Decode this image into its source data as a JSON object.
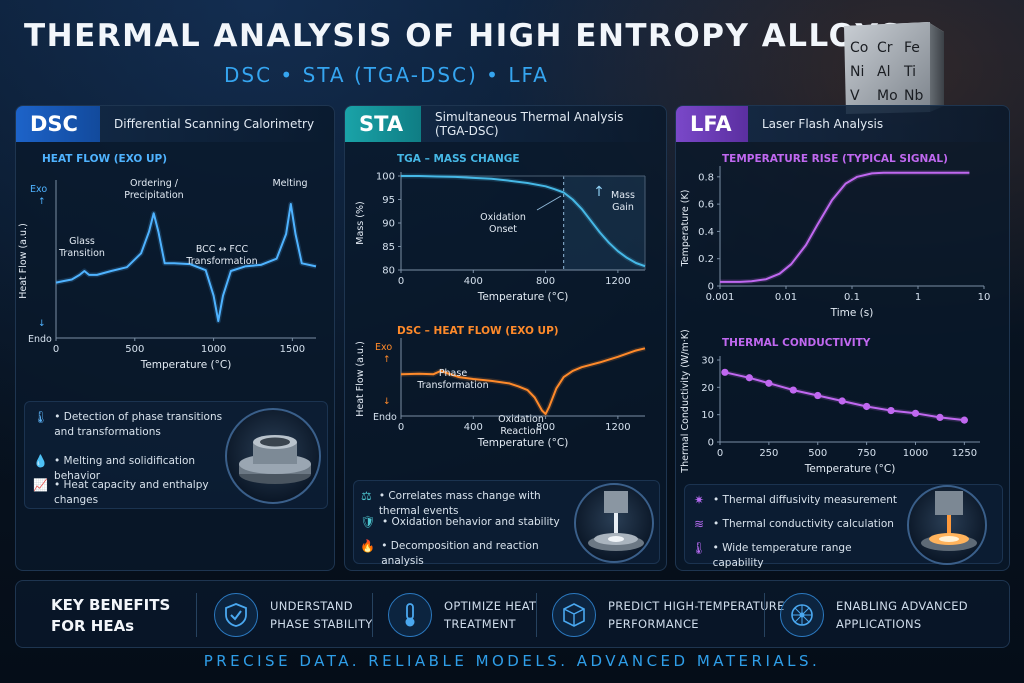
{
  "header": {
    "title": "THERMAL ANALYSIS OF HIGH ENTROPY ALLOYS",
    "subtitle": "DSC • STA (TGA-DSC) • LFA",
    "cube_elements": [
      "Co",
      "Cr",
      "Fe",
      "Ni",
      "Al",
      "Ti",
      "V",
      "Mo",
      "Nb"
    ]
  },
  "panels": {
    "dsc": {
      "tag": "DSC",
      "name": "Differential Scanning Calorimetry",
      "features": [
        {
          "icon": "thermometer-icon",
          "text": "• Detection of phase transitions and transformations"
        },
        {
          "icon": "droplet-icon",
          "text": "• Melting and solidification behavior"
        },
        {
          "icon": "chart-line-icon",
          "text": "• Heat capacity and enthalpy changes"
        }
      ]
    },
    "sta": {
      "tag": "STA",
      "name": "Simultaneous Thermal Analysis (TGA-DSC)",
      "features": [
        {
          "icon": "balance-icon",
          "text": "• Correlates mass change with thermal events"
        },
        {
          "icon": "shield-icon",
          "text": "• Oxidation behavior and stability"
        },
        {
          "icon": "flame-icon",
          "text": "• Decomposition and reaction analysis"
        }
      ]
    },
    "lfa": {
      "tag": "LFA",
      "name": "Laser Flash Analysis",
      "features": [
        {
          "icon": "flash-icon",
          "text": "• Thermal diffusivity measurement"
        },
        {
          "icon": "heat-waves-icon",
          "text": "• Thermal conductivity calculation"
        },
        {
          "icon": "thermometer-icon",
          "text": "• Wide temperature range capability"
        }
      ]
    }
  },
  "chart_data": [
    {
      "id": "dsc",
      "type": "line",
      "title": "HEAT FLOW (EXO UP)",
      "xlabel": "Temperature (°C)",
      "ylabel": "Heat Flow (a.u.)",
      "xlim": [
        0,
        1650
      ],
      "xticks": [
        0,
        500,
        1000,
        1500
      ],
      "ylim": [
        -1,
        1
      ],
      "y_top_label": "Exo",
      "y_bottom_label": "Endo",
      "grid": false,
      "color": "#4fb3ff",
      "x": [
        0,
        50,
        100,
        150,
        180,
        210,
        260,
        350,
        450,
        540,
        590,
        620,
        650,
        690,
        750,
        850,
        950,
        1000,
        1030,
        1060,
        1110,
        1200,
        1300,
        1400,
        1460,
        1490,
        1520,
        1560,
        1650
      ],
      "y": [
        -0.28,
        -0.26,
        -0.24,
        -0.18,
        -0.13,
        -0.18,
        -0.18,
        -0.13,
        -0.08,
        0.1,
        0.38,
        0.62,
        0.38,
        -0.03,
        -0.03,
        -0.04,
        -0.12,
        -0.45,
        -0.78,
        -0.45,
        -0.13,
        -0.07,
        -0.05,
        0.03,
        0.35,
        0.74,
        0.35,
        -0.03,
        -0.07
      ],
      "annotations": [
        {
          "text": "Glass\nTransition",
          "x": 180
        },
        {
          "text": "Ordering /\nPrecipitation",
          "x": 620
        },
        {
          "text": "BCC ↔ FCC\nTransformation",
          "x": 1030
        },
        {
          "text": "Melting",
          "x": 1490
        }
      ]
    },
    {
      "id": "tga",
      "type": "line",
      "title": "TGA – MASS CHANGE",
      "xlabel": "Temperature (°C)",
      "ylabel": "Mass (%)",
      "xlim": [
        0,
        1350
      ],
      "xticks": [
        0,
        400,
        800,
        1200
      ],
      "ylim": [
        80,
        100
      ],
      "yticks": [
        80,
        85,
        90,
        95,
        100
      ],
      "grid": false,
      "color": "#46b8e6",
      "x": [
        0,
        100,
        200,
        300,
        400,
        500,
        600,
        700,
        800,
        850,
        900,
        950,
        1000,
        1050,
        1100,
        1150,
        1200,
        1250,
        1300,
        1350
      ],
      "y": [
        100,
        100,
        99.9,
        99.8,
        99.6,
        99.4,
        99.0,
        98.5,
        97.8,
        97.2,
        96.5,
        95.0,
        93.0,
        90.5,
        88.0,
        85.8,
        84.0,
        82.6,
        81.5,
        80.8
      ],
      "annotations": [
        {
          "text": "Oxidation\nOnset",
          "x": 900
        },
        {
          "text": "Mass\nGain",
          "x": 1150
        }
      ]
    },
    {
      "id": "sta-dsc",
      "type": "line",
      "title": "DSC – HEAT FLOW (EXO UP)",
      "xlabel": "Temperature (°C)",
      "ylabel": "Heat Flow (a.u.)",
      "xlim": [
        0,
        1350
      ],
      "xticks": [
        0,
        400,
        800,
        1200
      ],
      "ylim": [
        -1,
        1
      ],
      "y_top_label": "Exo",
      "y_bottom_label": "Endo",
      "grid": false,
      "color": "#ff8a2a",
      "x": [
        0,
        100,
        180,
        220,
        260,
        320,
        400,
        500,
        600,
        650,
        700,
        740,
        780,
        800,
        820,
        860,
        900,
        950,
        1000,
        1100,
        1200,
        1300,
        1350
      ],
      "y": [
        0.13,
        0.14,
        0.13,
        0.22,
        0.15,
        0.05,
        0.0,
        -0.05,
        -0.12,
        -0.2,
        -0.3,
        -0.5,
        -0.85,
        -0.95,
        -0.75,
        -0.25,
        0.05,
        0.22,
        0.32,
        0.45,
        0.6,
        0.77,
        0.83
      ],
      "annotations": [
        {
          "text": "Phase\nTransformation",
          "x": 220
        },
        {
          "text": "Oxidation\nReaction",
          "x": 800
        }
      ]
    },
    {
      "id": "lfa-signal",
      "type": "line",
      "title": "TEMPERATURE RISE (TYPICAL SIGNAL)",
      "xlabel": "Time (s)",
      "ylabel": "Temperature (K)",
      "xscale": "log",
      "xlim": [
        0.001,
        10
      ],
      "xticks": [
        0.001,
        0.01,
        0.1,
        1,
        10
      ],
      "xticklabels": [
        "0.001",
        "0.01",
        "0.1",
        "1",
        "10"
      ],
      "ylim": [
        0,
        0.85
      ],
      "yticks": [
        0,
        0.2,
        0.4,
        0.6,
        0.8
      ],
      "grid": false,
      "color": "#c068f0",
      "x": [
        0.001,
        0.002,
        0.003,
        0.005,
        0.008,
        0.012,
        0.02,
        0.03,
        0.05,
        0.08,
        0.12,
        0.2,
        0.3,
        0.5,
        1,
        2,
        6
      ],
      "y": [
        0.03,
        0.03,
        0.035,
        0.05,
        0.09,
        0.16,
        0.3,
        0.45,
        0.63,
        0.75,
        0.8,
        0.825,
        0.83,
        0.83,
        0.83,
        0.83,
        0.83
      ]
    },
    {
      "id": "lfa-conductivity",
      "type": "line",
      "title": "THERMAL CONDUCTIVITY",
      "xlabel": "Temperature (°C)",
      "ylabel": "Thermal Conductivity (W/m·K)",
      "xlim": [
        0,
        1330
      ],
      "xticks": [
        0,
        250,
        500,
        750,
        1000,
        1250
      ],
      "ylim": [
        0,
        30
      ],
      "yticks": [
        0,
        10,
        20,
        30
      ],
      "grid": false,
      "color": "#c068f0",
      "markers": true,
      "x": [
        25,
        150,
        250,
        375,
        500,
        625,
        750,
        875,
        1000,
        1125,
        1250
      ],
      "y": [
        25.5,
        23.5,
        21.5,
        19,
        17,
        15,
        13,
        11.5,
        10.5,
        9,
        8
      ]
    }
  ],
  "benefits": {
    "heading": "KEY BENEFITS\nFOR HEAs",
    "items": [
      {
        "icon": "shield-check-icon",
        "text": "UNDERSTAND\nPHASE STABILITY"
      },
      {
        "icon": "thermometer-icon",
        "text": "OPTIMIZE HEAT\nTREATMENT"
      },
      {
        "icon": "crystal-lattice-icon",
        "text": "PREDICT HIGH-TEMPERATURE\nPERFORMANCE"
      },
      {
        "icon": "turbine-icon",
        "text": "ENABLING ADVANCED\nAPPLICATIONS"
      }
    ]
  },
  "footer": "PRECISE DATA. RELIABLE MODELS. ADVANCED MATERIALS."
}
